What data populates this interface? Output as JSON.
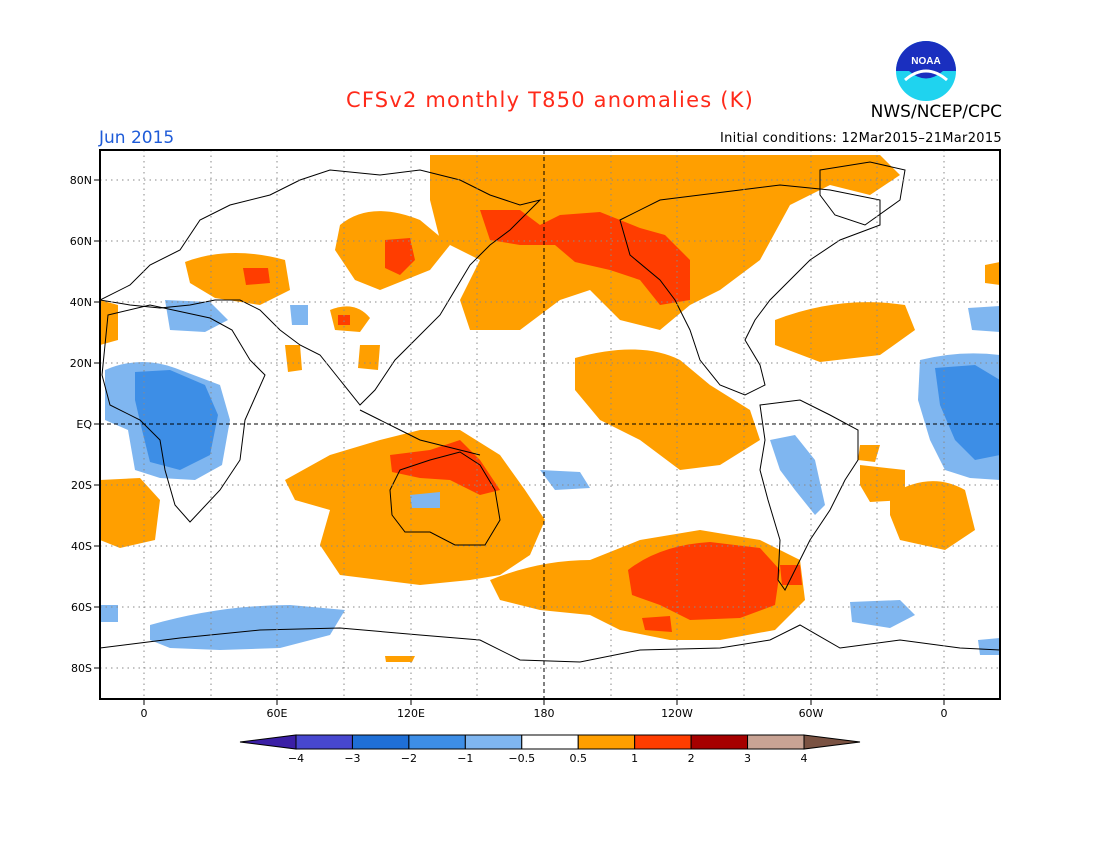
{
  "title": "CFSv2 monthly T850 anomalies (K)",
  "month": "Jun 2015",
  "credit": "NWS/NCEP/CPC",
  "initial_conditions": "Initial conditions: 12Mar2015–21Mar2015",
  "logo_text": "NOAA",
  "lat_labels": [
    "80N",
    "60N",
    "40N",
    "20N",
    "EQ",
    "20S",
    "40S",
    "60S",
    "80S"
  ],
  "lon_labels": [
    "0",
    "60E",
    "120E",
    "180",
    "120W",
    "60W",
    "0"
  ],
  "colorbar": {
    "labels": [
      "−4",
      "−3",
      "−2",
      "−1",
      "−0.5",
      "0.5",
      "1",
      "2",
      "3",
      "4"
    ],
    "colors": [
      "#3b1fa6",
      "#4747cf",
      "#1f6fd6",
      "#3d8ee6",
      "#7fb6f0",
      "#ffffff",
      "#ff9f00",
      "#ff3d00",
      "#a60000",
      "#c8a394",
      "#7a5242"
    ]
  },
  "colors": {
    "warm1": "#ff9f00",
    "warm2": "#ff3d00",
    "cool1": "#7fb6f0",
    "cool2": "#3d8ee6"
  }
}
